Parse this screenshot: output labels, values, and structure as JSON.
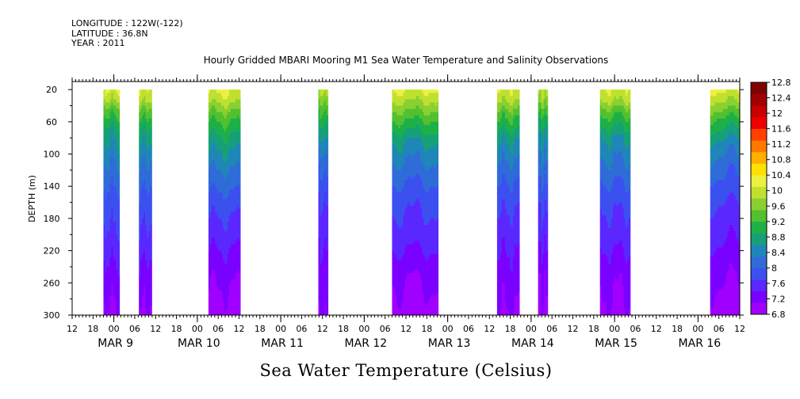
{
  "header": {
    "longitude": "LONGITUDE : 122W(-122)",
    "latitude": "LATITUDE : 36.8N",
    "year": "YEAR : 2011"
  },
  "chart_data": {
    "type": "heatmap",
    "title": "Hourly Gridded MBARI Mooring M1 Sea Water Temperature and Salinity Observations",
    "caption": "Sea Water Temperature (Celsius)",
    "ylabel": "DEPTH (m)",
    "xlabel": "",
    "x_unit": "hours since 2011-03-08 12:00",
    "xlim": [
      0,
      192
    ],
    "ylim": [
      300,
      10
    ],
    "y_ticks": [
      20,
      60,
      100,
      140,
      180,
      220,
      260,
      300
    ],
    "x_hour_tick_labels": [
      "12",
      "18",
      "00",
      "06",
      "12",
      "18",
      "00",
      "06",
      "12",
      "18",
      "00",
      "06",
      "12",
      "18",
      "00",
      "06",
      "12",
      "18",
      "00",
      "06",
      "12",
      "18",
      "00",
      "06",
      "12",
      "18",
      "00",
      "06",
      "12",
      "18",
      "00",
      "06",
      "12"
    ],
    "date_labels": [
      {
        "label": "MAR  9",
        "hour": 12
      },
      {
        "label": "MAR 10",
        "hour": 36
      },
      {
        "label": "MAR 11",
        "hour": 60
      },
      {
        "label": "MAR 12",
        "hour": 84
      },
      {
        "label": "MAR 13",
        "hour": 108
      },
      {
        "label": "MAR 14",
        "hour": 132
      },
      {
        "label": "MAR 15",
        "hour": 156
      },
      {
        "label": "MAR 16",
        "hour": 180
      }
    ],
    "colorbar": {
      "levels": [
        6.8,
        7.2,
        7.6,
        8,
        8.4,
        8.8,
        9.2,
        9.6,
        10,
        10.4,
        10.8,
        11.2,
        11.6,
        12,
        12.4,
        12.8
      ],
      "labels": [
        "12.8",
        "12.4",
        "12",
        "11.6",
        "11.2",
        "10.8",
        "10.4",
        "10",
        "9.6",
        "9.2",
        "8.8",
        "8.4",
        "8",
        "7.6",
        "7.2",
        "6.8"
      ],
      "colors": [
        "#a000ff",
        "#7a00ff",
        "#5a28ff",
        "#3c50f0",
        "#2f6cd8",
        "#1f86b8",
        "#16a078",
        "#1eb048",
        "#52c030",
        "#8ad030",
        "#c0e030",
        "#ecf040",
        "#ffe000",
        "#ffb000",
        "#ff7800",
        "#ff4000",
        "#ee0000",
        "#c80000",
        "#a00000",
        "#800000"
      ]
    },
    "data_blocks": [
      {
        "start_hour": 9.0,
        "end_hour": 13.5,
        "warm_m": 45,
        "profile": [
          [
            20,
            11.2
          ],
          [
            30,
            10.9
          ],
          [
            45,
            10.2
          ],
          [
            70,
            9.4
          ],
          [
            110,
            8.8
          ],
          [
            150,
            8.3
          ],
          [
            200,
            7.9
          ],
          [
            260,
            7.35
          ],
          [
            300,
            7.1
          ]
        ]
      },
      {
        "start_hour": 19.2,
        "end_hour": 22.8,
        "warm_m": 42,
        "profile": [
          [
            20,
            11.1
          ],
          [
            32,
            10.9
          ],
          [
            45,
            10.3
          ],
          [
            70,
            9.5
          ],
          [
            110,
            8.8
          ],
          [
            150,
            8.3
          ],
          [
            200,
            7.9
          ],
          [
            260,
            7.35
          ],
          [
            300,
            7.15
          ]
        ]
      },
      {
        "start_hour": 39.2,
        "end_hour": 48.2,
        "warm_m": 50,
        "profile": [
          [
            20,
            11.3
          ],
          [
            32,
            11.0
          ],
          [
            50,
            10.3
          ],
          [
            80,
            9.5
          ],
          [
            120,
            8.8
          ],
          [
            160,
            8.2
          ],
          [
            210,
            7.7
          ],
          [
            250,
            7.3
          ],
          [
            300,
            7.0
          ]
        ]
      },
      {
        "start_hour": 70.8,
        "end_hour": 73.4,
        "warm_m": 40,
        "profile": [
          [
            20,
            11.0
          ],
          [
            35,
            10.5
          ],
          [
            50,
            10.0
          ],
          [
            80,
            9.2
          ],
          [
            110,
            8.6
          ],
          [
            150,
            8.1
          ],
          [
            220,
            7.6
          ],
          [
            270,
            7.35
          ],
          [
            300,
            7.25
          ]
        ]
      },
      {
        "start_hour": 92.0,
        "end_hour": 105.0,
        "warm_m": 52,
        "profile": [
          [
            20,
            11.2
          ],
          [
            32,
            10.9
          ],
          [
            55,
            10.1
          ],
          [
            85,
            9.2
          ],
          [
            120,
            8.6
          ],
          [
            160,
            8.1
          ],
          [
            210,
            7.7
          ],
          [
            250,
            7.25
          ],
          [
            300,
            7.0
          ]
        ]
      },
      {
        "start_hour": 122.2,
        "end_hour": 128.2,
        "warm_m": 48,
        "profile": [
          [
            20,
            11.2
          ],
          [
            32,
            10.9
          ],
          [
            50,
            10.2
          ],
          [
            80,
            9.3
          ],
          [
            120,
            8.6
          ],
          [
            160,
            8.1
          ],
          [
            210,
            7.7
          ],
          [
            260,
            7.35
          ],
          [
            300,
            7.15
          ]
        ]
      },
      {
        "start_hour": 134.0,
        "end_hour": 136.4,
        "warm_m": 40,
        "profile": [
          [
            20,
            11.0
          ],
          [
            35,
            10.6
          ],
          [
            55,
            9.8
          ],
          [
            80,
            9.2
          ],
          [
            120,
            8.6
          ],
          [
            160,
            8.1
          ],
          [
            210,
            7.7
          ],
          [
            250,
            7.3
          ],
          [
            300,
            7.1
          ]
        ]
      },
      {
        "start_hour": 151.8,
        "end_hour": 160.2,
        "warm_m": 48,
        "profile": [
          [
            20,
            11.1
          ],
          [
            32,
            10.9
          ],
          [
            50,
            10.1
          ],
          [
            80,
            9.2
          ],
          [
            120,
            8.6
          ],
          [
            160,
            8.1
          ],
          [
            210,
            7.7
          ],
          [
            250,
            7.3
          ],
          [
            300,
            7.1
          ]
        ]
      },
      {
        "start_hour": 183.5,
        "end_hour": 198.0,
        "warm_m": 55,
        "profile": [
          [
            20,
            11.3
          ],
          [
            32,
            10.9
          ],
          [
            55,
            10.0
          ],
          [
            85,
            9.1
          ],
          [
            120,
            8.5
          ],
          [
            160,
            8.0
          ],
          [
            210,
            7.6
          ],
          [
            250,
            7.25
          ],
          [
            300,
            7.0
          ]
        ]
      }
    ]
  }
}
